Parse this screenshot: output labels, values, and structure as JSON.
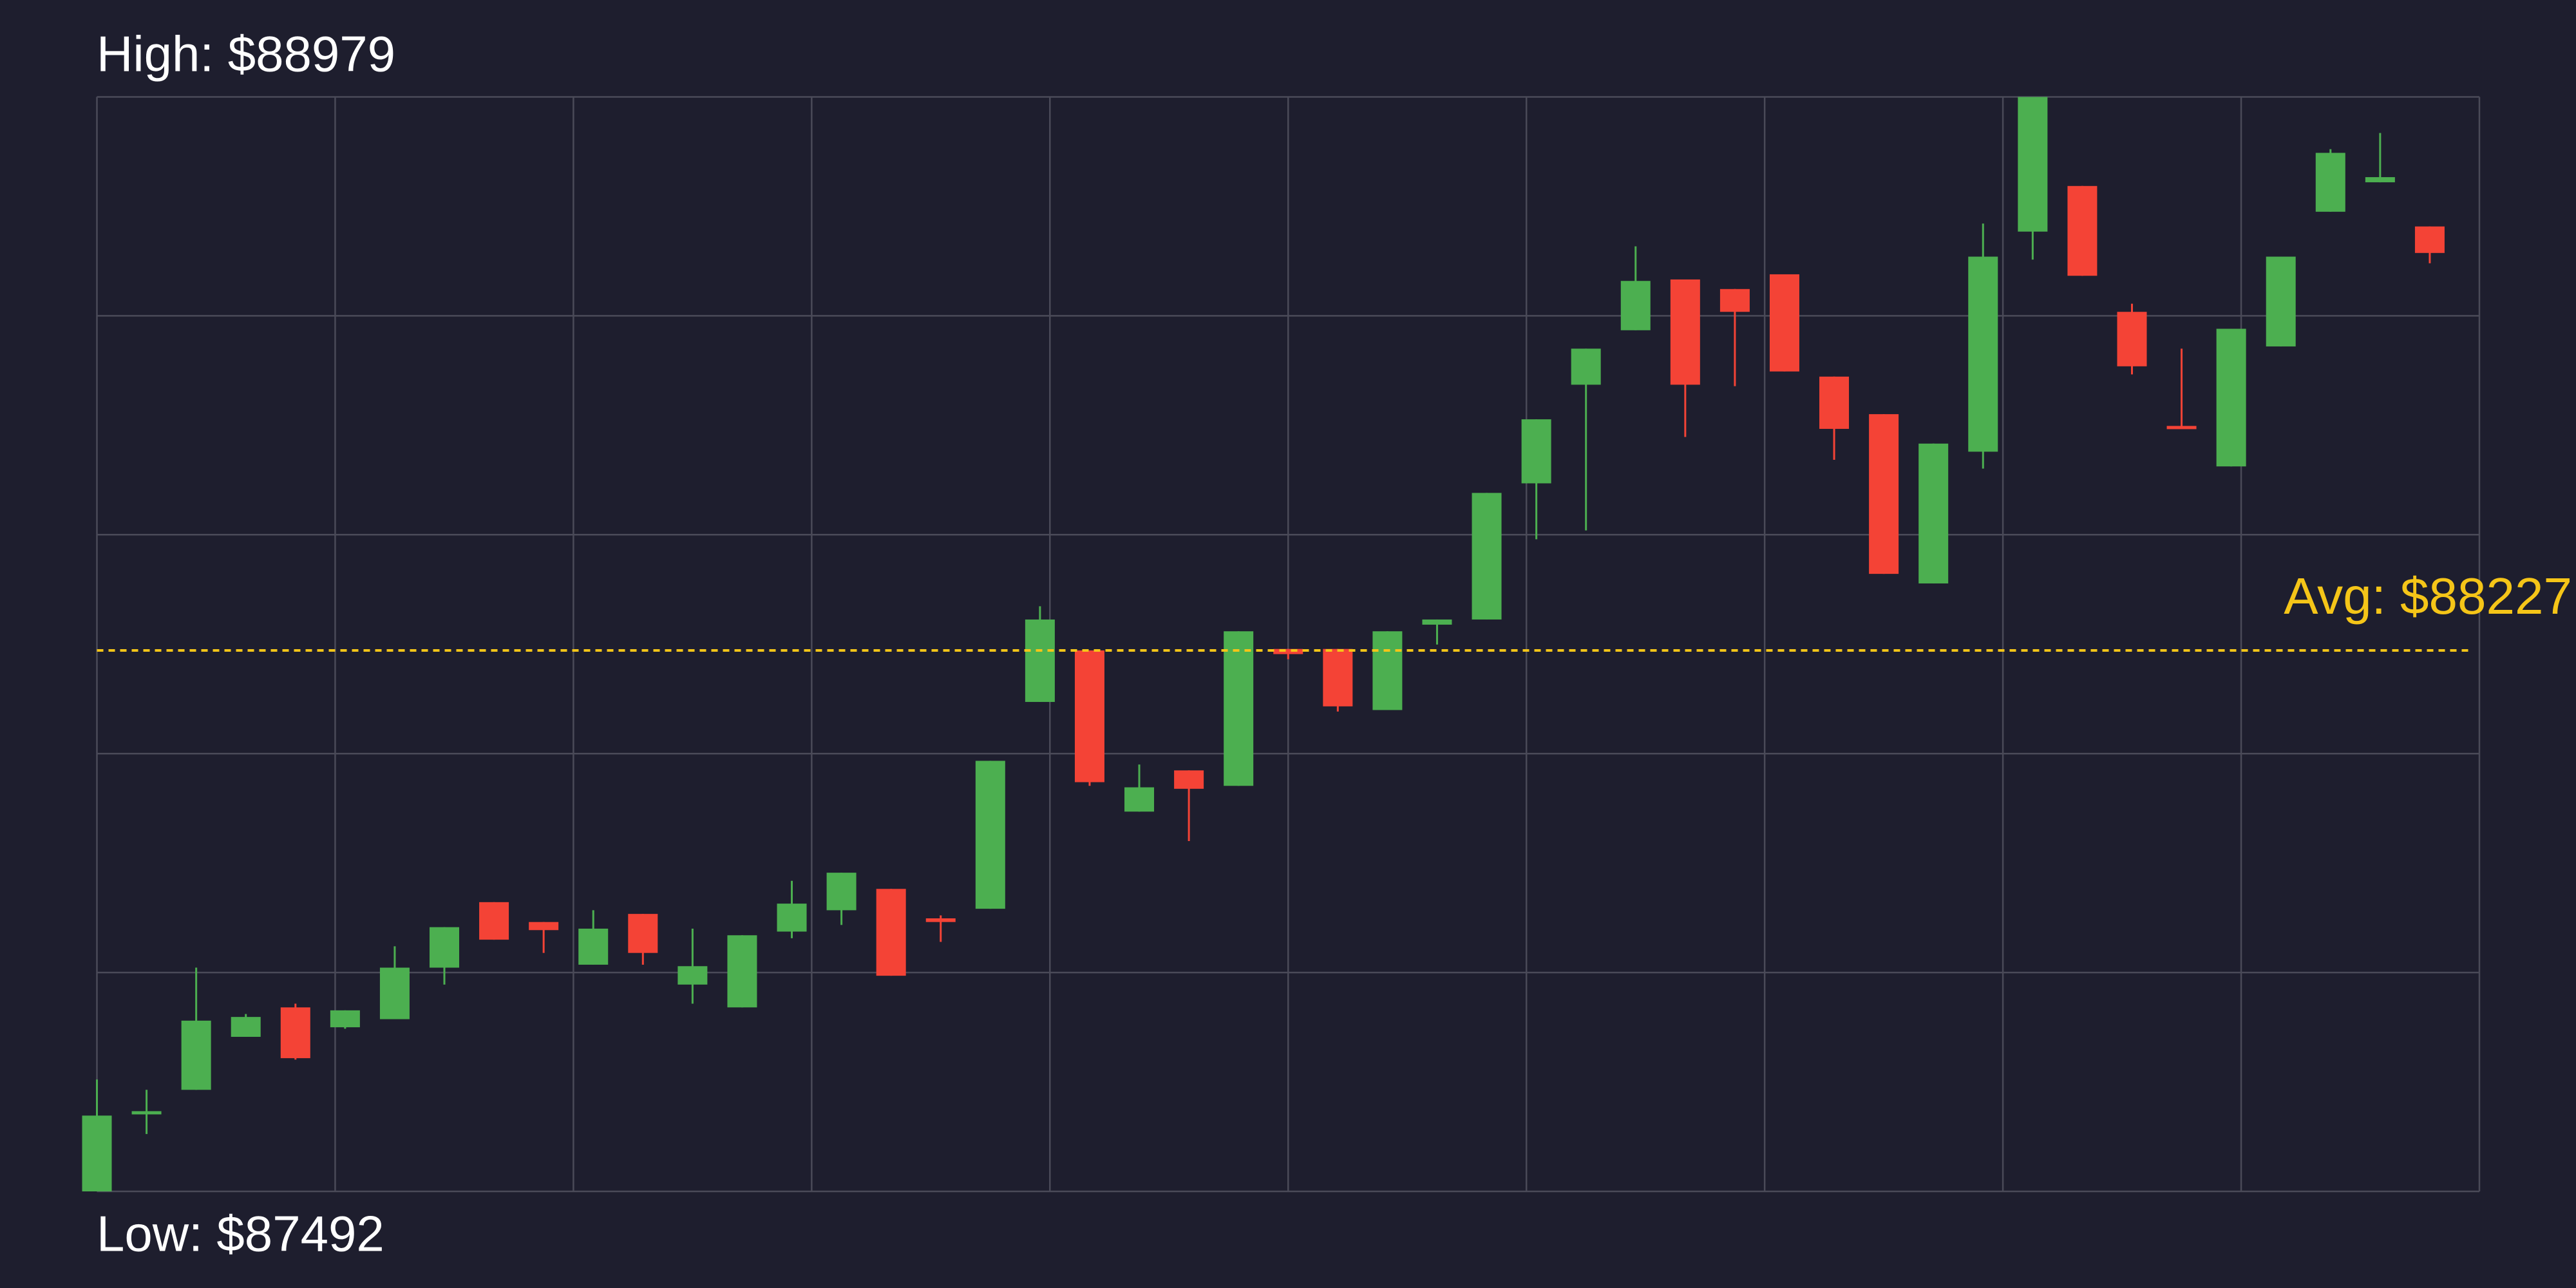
{
  "chart_data": {
    "type": "candlestick",
    "x": [
      0,
      1,
      2,
      3,
      4,
      5,
      6,
      7,
      8,
      9,
      10,
      11,
      12,
      13,
      14,
      15,
      16,
      17,
      18,
      19,
      20,
      21,
      22,
      23,
      24,
      25,
      26,
      27,
      28,
      29,
      30,
      31,
      32,
      33,
      34,
      35,
      36,
      37,
      38,
      39,
      40,
      41,
      42,
      43,
      44,
      45,
      46,
      47
    ],
    "open": [
      87492,
      87597,
      87630,
      87702,
      87742,
      87715,
      87726,
      87796,
      87885,
      87858,
      87800,
      87869,
      87773,
      87742,
      87845,
      87874,
      87903,
      87863,
      87876,
      88157,
      88227,
      88008,
      88064,
      88043,
      88229,
      88229,
      88146,
      88262,
      88269,
      88454,
      88588,
      88662,
      88731,
      88718,
      88738,
      88599,
      88548,
      88318,
      88497,
      88796,
      88858,
      88687,
      88532,
      88477,
      88640,
      88823,
      88863,
      88803
    ],
    "high": [
      87644,
      87630,
      87796,
      87733,
      87747,
      87738,
      87825,
      87851,
      87885,
      87858,
      87874,
      87869,
      87849,
      87840,
      87914,
      87925,
      87903,
      87867,
      88077,
      88287,
      88227,
      88072,
      88064,
      88253,
      88229,
      88229,
      88253,
      88269,
      88441,
      88541,
      88637,
      88776,
      88731,
      88718,
      88738,
      88599,
      88548,
      88508,
      88807,
      88979,
      88858,
      88698,
      88637,
      88664,
      88762,
      88908,
      88930,
      88803
    ],
    "low": [
      87492,
      87570,
      87630,
      87702,
      87671,
      87713,
      87726,
      87773,
      87834,
      87816,
      87800,
      87800,
      87747,
      87742,
      87836,
      87854,
      87785,
      87831,
      87876,
      88157,
      88043,
      88008,
      87968,
      88043,
      88215,
      88144,
      88146,
      88235,
      88269,
      88378,
      88390,
      88662,
      88517,
      88586,
      88606,
      88486,
      88331,
      88318,
      88474,
      88758,
      88736,
      88602,
      88528,
      88477,
      88640,
      88823,
      88863,
      88753
    ],
    "close": [
      87595,
      87601,
      87724,
      87729,
      87673,
      87738,
      87796,
      87851,
      87834,
      87847,
      87849,
      87816,
      87798,
      87840,
      87883,
      87925,
      87785,
      87858,
      88077,
      88269,
      88048,
      88041,
      88039,
      88253,
      88222,
      88151,
      88253,
      88269,
      88441,
      88541,
      88637,
      88729,
      88588,
      88687,
      88606,
      88528,
      88331,
      88508,
      88762,
      88979,
      88736,
      88613,
      88528,
      88664,
      88762,
      88903,
      88870,
      88767
    ],
    "up_color": "#4caf50",
    "down_color": "#f44336",
    "xlim": [
      0,
      48
    ],
    "xticks": [
      0,
      4.8,
      9.6,
      14.4,
      19.2,
      24,
      28.8,
      33.6,
      38.4,
      43.2,
      48
    ],
    "ylim": [
      87492,
      88979
    ],
    "yticks": [
      87492,
      87789.4,
      88086.8,
      88384.2,
      88681.6,
      88979
    ],
    "grid": true,
    "show_tick_labels": false,
    "annotations": {
      "high": {
        "value": 88979,
        "label": "High: $88979"
      },
      "low": {
        "value": 87492,
        "label": "Low: $87492"
      },
      "avg": {
        "value": 88227,
        "label": "Avg: $88227",
        "color": "#f5c518"
      }
    }
  }
}
